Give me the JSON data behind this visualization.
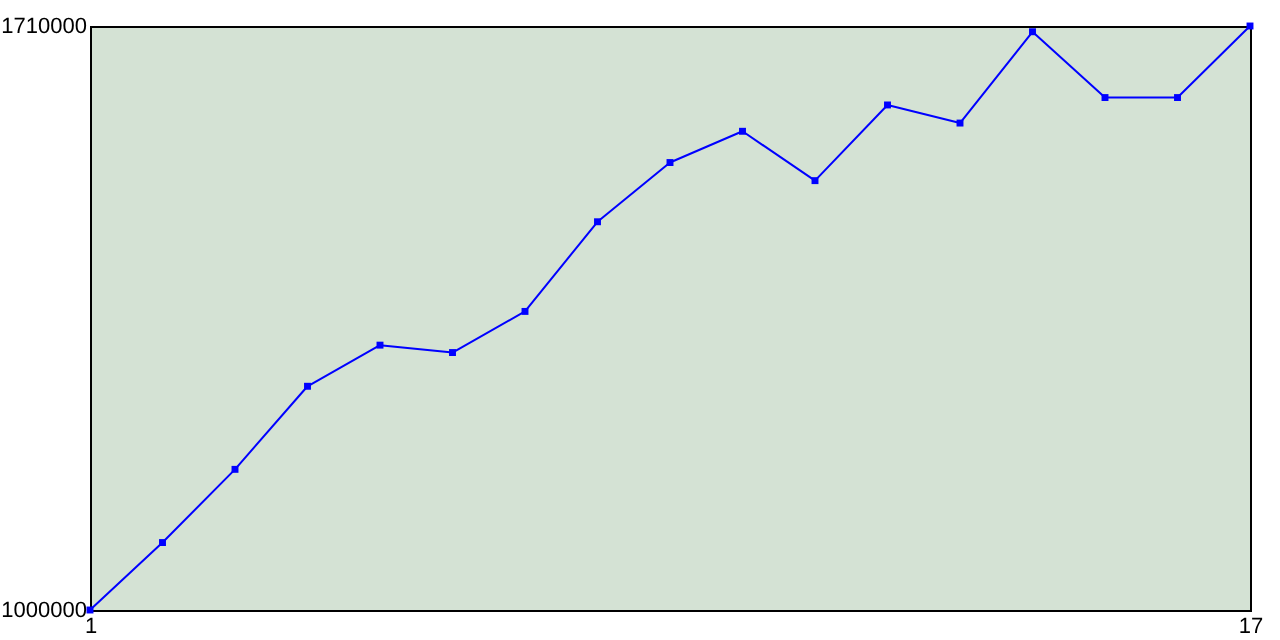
{
  "chart_data": {
    "type": "line",
    "x": [
      1,
      2,
      3,
      4,
      5,
      6,
      7,
      8,
      9,
      10,
      11,
      12,
      13,
      14,
      15,
      16,
      17
    ],
    "series": [
      {
        "color": "#0000ff",
        "values": [
          1000000,
          1082000,
          1171000,
          1272000,
          1322000,
          1313000,
          1363000,
          1472000,
          1544000,
          1582000,
          1522000,
          1614000,
          1592000,
          1703000,
          1623000,
          1623000,
          1710000
        ]
      }
    ],
    "xlim": [
      1,
      17
    ],
    "xticks": [
      1,
      17
    ],
    "ylim": [
      1000000,
      1710000
    ],
    "yticks": [
      1000000,
      1710000
    ],
    "grid": false,
    "marker": "square",
    "line_style": "solid"
  }
}
